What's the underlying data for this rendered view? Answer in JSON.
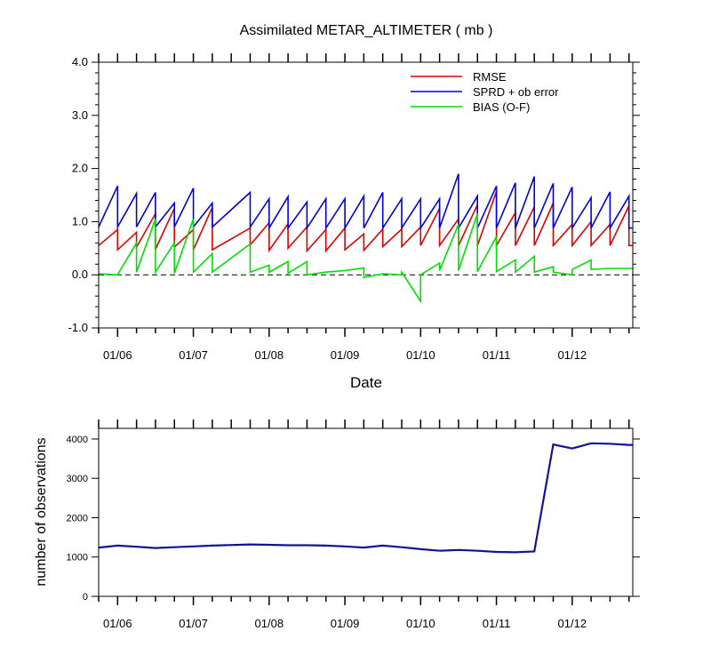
{
  "chart_data": [
    {
      "type": "line",
      "title": "Assimilated METAR_ALTIMETER ( mb )",
      "xlabel": "Date",
      "ylabel": "",
      "ylim": [
        -1.0,
        4.0
      ],
      "yticks": [
        -1.0,
        0.0,
        1.0,
        2.0,
        3.0,
        4.0
      ],
      "ytick_labels": [
        "-1.0",
        "0.0",
        "1.0",
        "2.0",
        "3.0",
        "4.0"
      ],
      "xlim": [
        5.75,
        12.8
      ],
      "xticks": [
        6,
        7,
        8,
        9,
        10,
        11,
        12
      ],
      "xtick_labels": [
        "01/06",
        "01/07",
        "01/08",
        "01/09",
        "01/10",
        "01/11",
        "01/12"
      ],
      "zero_line": "dashed",
      "legend_position": "top-right",
      "colors": {
        "RMSE": "#e00000",
        "SPRD + ob error": "#0000e0",
        "BIAS (O-F)": "#00e000"
      },
      "series": [
        {
          "name": "RMSE",
          "x": [
            5.75,
            6.0,
            6.0,
            6.25,
            6.25,
            6.5,
            6.5,
            6.75,
            6.75,
            7.0,
            7.0,
            7.25,
            7.25,
            7.75,
            7.75,
            8.0,
            8.0,
            8.25,
            8.25,
            8.5,
            8.5,
            8.75,
            8.75,
            9.0,
            9.0,
            9.25,
            9.25,
            9.5,
            9.5,
            9.75,
            9.75,
            10.0,
            10.0,
            10.25,
            10.25,
            10.5,
            10.5,
            10.75,
            10.75,
            11.0,
            11.0,
            11.25,
            11.25,
            11.5,
            11.5,
            11.75,
            11.75,
            12.0,
            12.0,
            12.25,
            12.25,
            12.5,
            12.5,
            12.75,
            12.75,
            12.8
          ],
          "y": [
            0.55,
            0.85,
            0.47,
            0.8,
            0.52,
            1.15,
            0.48,
            1.25,
            0.52,
            0.85,
            0.47,
            1.27,
            0.47,
            0.88,
            0.56,
            0.98,
            0.46,
            0.96,
            0.5,
            0.9,
            0.45,
            0.85,
            0.45,
            0.88,
            0.47,
            0.77,
            0.46,
            0.86,
            0.53,
            0.86,
            0.53,
            0.9,
            0.55,
            1.25,
            0.55,
            1.05,
            0.55,
            1.32,
            0.55,
            1.57,
            0.55,
            1.17,
            0.55,
            1.28,
            0.55,
            1.35,
            0.55,
            0.95,
            0.55,
            1.0,
            0.55,
            0.95,
            0.55,
            1.3,
            0.55,
            0.55
          ]
        },
        {
          "name": "SPRD + ob error",
          "x": [
            5.75,
            6.0,
            6.0,
            6.25,
            6.25,
            6.5,
            6.5,
            6.75,
            6.75,
            7.0,
            7.0,
            7.25,
            7.25,
            7.75,
            7.75,
            8.0,
            8.0,
            8.25,
            8.25,
            8.5,
            8.5,
            8.75,
            8.75,
            9.0,
            9.0,
            9.25,
            9.25,
            9.5,
            9.5,
            9.75,
            9.75,
            10.0,
            10.0,
            10.25,
            10.25,
            10.5,
            10.5,
            10.75,
            10.75,
            11.0,
            11.0,
            11.25,
            11.25,
            11.5,
            11.5,
            11.75,
            11.75,
            12.0,
            12.0,
            12.25,
            12.25,
            12.5,
            12.5,
            12.75,
            12.75,
            12.8
          ],
          "y": [
            0.9,
            1.67,
            0.9,
            1.53,
            0.9,
            1.55,
            0.9,
            1.35,
            0.9,
            1.63,
            0.9,
            1.35,
            0.9,
            1.55,
            0.9,
            1.43,
            0.88,
            1.47,
            0.88,
            1.37,
            0.88,
            1.43,
            0.88,
            1.43,
            0.88,
            1.48,
            0.88,
            1.55,
            0.88,
            1.43,
            0.88,
            1.43,
            0.88,
            1.43,
            0.88,
            1.9,
            0.88,
            1.48,
            0.88,
            1.67,
            0.88,
            1.73,
            0.88,
            1.85,
            0.88,
            1.72,
            0.88,
            1.65,
            0.88,
            1.45,
            0.88,
            1.56,
            0.88,
            1.48,
            0.88,
            0.88
          ]
        },
        {
          "name": "BIAS (O-F)",
          "x": [
            5.75,
            6.0,
            6.0,
            6.25,
            6.25,
            6.5,
            6.5,
            6.75,
            6.75,
            7.0,
            7.0,
            7.25,
            7.25,
            7.75,
            7.75,
            8.0,
            8.0,
            8.25,
            8.25,
            8.5,
            8.5,
            8.75,
            8.75,
            9.0,
            9.0,
            9.25,
            9.25,
            9.5,
            9.5,
            9.75,
            9.75,
            10.0,
            10.0,
            10.25,
            10.25,
            10.5,
            10.5,
            10.75,
            10.75,
            11.0,
            11.0,
            11.25,
            11.25,
            11.5,
            11.5,
            11.75,
            11.75,
            12.0,
            12.0,
            12.25,
            12.25,
            12.5,
            12.5,
            12.75,
            12.75,
            12.8
          ],
          "y": [
            0.02,
            0.0,
            0.0,
            0.6,
            0.05,
            1.05,
            0.05,
            0.6,
            0.03,
            1.05,
            0.05,
            0.4,
            0.05,
            0.58,
            0.05,
            0.18,
            0.05,
            0.25,
            0.03,
            0.25,
            0.0,
            0.05,
            0.05,
            0.08,
            0.08,
            0.13,
            -0.05,
            0.02,
            0.02,
            0.0,
            0.05,
            -0.5,
            0.0,
            0.22,
            0.08,
            0.95,
            0.08,
            1.15,
            0.06,
            0.72,
            0.06,
            0.28,
            0.05,
            0.35,
            0.05,
            0.15,
            0.05,
            0.0,
            0.1,
            0.28,
            0.1,
            0.12,
            0.12,
            0.12,
            0.12,
            0.12
          ]
        }
      ]
    },
    {
      "type": "line",
      "title": "",
      "xlabel": "",
      "ylabel": "number of observations",
      "ylim": [
        0,
        4270
      ],
      "yticks": [
        0,
        1000,
        2000,
        3000,
        4000
      ],
      "ytick_labels": [
        "0",
        "1000",
        "2000",
        "3000",
        "4000"
      ],
      "xlim": [
        5.75,
        12.8
      ],
      "xticks": [
        6,
        7,
        8,
        9,
        10,
        11,
        12
      ],
      "xtick_labels": [
        "01/06",
        "01/07",
        "01/08",
        "01/09",
        "01/10",
        "01/11",
        "01/12"
      ],
      "colors": {
        "observations": "#1a1a7a",
        "overlay": "#0000e0"
      },
      "series": [
        {
          "name": "observations",
          "x": [
            5.75,
            6.0,
            6.25,
            6.5,
            6.75,
            7.0,
            7.25,
            7.75,
            8.0,
            8.25,
            8.5,
            8.75,
            9.0,
            9.25,
            9.5,
            9.75,
            10.0,
            10.25,
            10.5,
            10.75,
            11.0,
            11.25,
            11.5,
            11.75,
            12.0,
            12.25,
            12.5,
            12.75,
            12.8
          ],
          "y": [
            1240,
            1290,
            1260,
            1230,
            1250,
            1270,
            1290,
            1320,
            1310,
            1300,
            1300,
            1290,
            1270,
            1240,
            1290,
            1250,
            1200,
            1160,
            1180,
            1160,
            1130,
            1120,
            1140,
            3860,
            3760,
            3890,
            3880,
            3850,
            3850
          ]
        }
      ]
    }
  ],
  "legend_entries": [
    "RMSE",
    "SPRD + ob error",
    "BIAS (O-F)"
  ],
  "top_title": "Assimilated METAR_ALTIMETER ( mb )",
  "top_xlabel": "Date",
  "bottom_ylabel": "number of observations"
}
